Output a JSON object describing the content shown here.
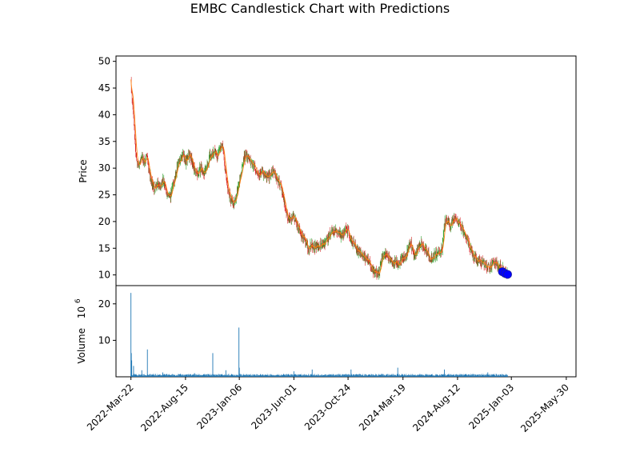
{
  "chart_data": {
    "type": "candlestick",
    "title": "EMBC Candlestick Chart with Predictions",
    "price_panel": {
      "ylabel": "Price",
      "ylim": [
        8,
        51
      ],
      "yticks": [
        10,
        15,
        20,
        25,
        30,
        35,
        40,
        45,
        50
      ],
      "close_series": [
        [
          "2022-03-22",
          46.0
        ],
        [
          "2022-03-29",
          39.5
        ],
        [
          "2022-04-05",
          31.5
        ],
        [
          "2022-04-12",
          30.5
        ],
        [
          "2022-04-19",
          32.0
        ],
        [
          "2022-04-26",
          31.0
        ],
        [
          "2022-05-03",
          32.0
        ],
        [
          "2022-05-10",
          29.0
        ],
        [
          "2022-05-17",
          27.5
        ],
        [
          "2022-05-24",
          26.0
        ],
        [
          "2022-05-31",
          27.0
        ],
        [
          "2022-06-07",
          26.5
        ],
        [
          "2022-06-14",
          27.5
        ],
        [
          "2022-06-21",
          27.0
        ],
        [
          "2022-06-28",
          24.5
        ],
        [
          "2022-07-05",
          24.5
        ],
        [
          "2022-07-12",
          26.5
        ],
        [
          "2022-07-19",
          28.5
        ],
        [
          "2022-07-26",
          31.0
        ],
        [
          "2022-08-02",
          31.5
        ],
        [
          "2022-08-09",
          32.5
        ],
        [
          "2022-08-16",
          31.0
        ],
        [
          "2022-08-23",
          32.5
        ],
        [
          "2022-08-30",
          32.0
        ],
        [
          "2022-09-06",
          30.0
        ],
        [
          "2022-09-13",
          29.0
        ],
        [
          "2022-09-20",
          29.5
        ],
        [
          "2022-09-27",
          30.0
        ],
        [
          "2022-10-04",
          29.0
        ],
        [
          "2022-10-11",
          30.0
        ],
        [
          "2022-10-18",
          32.0
        ],
        [
          "2022-10-25",
          32.5
        ],
        [
          "2022-11-01",
          33.0
        ],
        [
          "2022-11-08",
          32.0
        ],
        [
          "2022-11-15",
          33.5
        ],
        [
          "2022-11-22",
          34.0
        ],
        [
          "2022-11-29",
          30.0
        ],
        [
          "2022-12-06",
          26.0
        ],
        [
          "2022-12-13",
          24.5
        ],
        [
          "2022-12-20",
          23.5
        ],
        [
          "2022-12-27",
          24.0
        ],
        [
          "2023-01-03",
          27.0
        ],
        [
          "2023-01-10",
          29.0
        ],
        [
          "2023-01-17",
          31.5
        ],
        [
          "2023-01-24",
          32.5
        ],
        [
          "2023-01-31",
          31.5
        ],
        [
          "2023-02-07",
          31.0
        ],
        [
          "2023-02-14",
          30.5
        ],
        [
          "2023-02-21",
          29.5
        ],
        [
          "2023-02-28",
          28.5
        ],
        [
          "2023-03-07",
          29.5
        ],
        [
          "2023-03-14",
          28.5
        ],
        [
          "2023-03-21",
          28.0
        ],
        [
          "2023-03-28",
          28.5
        ],
        [
          "2023-04-04",
          29.5
        ],
        [
          "2023-04-11",
          29.0
        ],
        [
          "2023-04-18",
          27.5
        ],
        [
          "2023-04-25",
          27.0
        ],
        [
          "2023-05-02",
          25.5
        ],
        [
          "2023-05-09",
          23.0
        ],
        [
          "2023-05-16",
          20.5
        ],
        [
          "2023-05-23",
          20.5
        ],
        [
          "2023-05-30",
          21.0
        ],
        [
          "2023-06-06",
          20.5
        ],
        [
          "2023-06-13",
          19.0
        ],
        [
          "2023-06-20",
          17.5
        ],
        [
          "2023-06-27",
          17.0
        ],
        [
          "2023-07-04",
          15.5
        ],
        [
          "2023-07-11",
          15.0
        ],
        [
          "2023-07-18",
          15.5
        ],
        [
          "2023-07-25",
          15.0
        ],
        [
          "2023-08-01",
          15.5
        ],
        [
          "2023-08-08",
          15.5
        ],
        [
          "2023-08-15",
          16.0
        ],
        [
          "2023-08-22",
          16.0
        ],
        [
          "2023-08-29",
          16.5
        ],
        [
          "2023-09-05",
          17.5
        ],
        [
          "2023-09-12",
          18.0
        ],
        [
          "2023-09-19",
          18.5
        ],
        [
          "2023-09-26",
          18.0
        ],
        [
          "2023-10-03",
          17.5
        ],
        [
          "2023-10-10",
          17.5
        ],
        [
          "2023-10-17",
          18.5
        ],
        [
          "2023-10-24",
          18.0
        ],
        [
          "2023-10-31",
          16.5
        ],
        [
          "2023-11-07",
          16.0
        ],
        [
          "2023-11-14",
          15.0
        ],
        [
          "2023-11-21",
          14.5
        ],
        [
          "2023-11-28",
          14.0
        ],
        [
          "2023-12-05",
          13.5
        ],
        [
          "2023-12-12",
          13.0
        ],
        [
          "2023-12-19",
          12.5
        ],
        [
          "2023-12-26",
          11.5
        ],
        [
          "2024-01-02",
          10.5
        ],
        [
          "2024-01-09",
          10.5
        ],
        [
          "2024-01-16",
          10.5
        ],
        [
          "2024-01-23",
          13.5
        ],
        [
          "2024-01-30",
          14.0
        ],
        [
          "2024-02-06",
          13.5
        ],
        [
          "2024-02-13",
          13.0
        ],
        [
          "2024-02-20",
          12.5
        ],
        [
          "2024-02-27",
          12.5
        ],
        [
          "2024-03-05",
          12.0
        ],
        [
          "2024-03-12",
          12.5
        ],
        [
          "2024-03-19",
          13.0
        ],
        [
          "2024-03-26",
          13.5
        ],
        [
          "2024-04-02",
          15.0
        ],
        [
          "2024-04-09",
          16.0
        ],
        [
          "2024-04-16",
          14.0
        ],
        [
          "2024-04-23",
          14.0
        ],
        [
          "2024-04-30",
          15.5
        ],
        [
          "2024-05-07",
          16.0
        ],
        [
          "2024-05-14",
          15.0
        ],
        [
          "2024-05-21",
          14.5
        ],
        [
          "2024-05-28",
          13.5
        ],
        [
          "2024-06-04",
          13.0
        ],
        [
          "2024-06-11",
          13.5
        ],
        [
          "2024-06-18",
          14.0
        ],
        [
          "2024-06-25",
          14.5
        ],
        [
          "2024-07-02",
          15.0
        ],
        [
          "2024-07-09",
          20.0
        ],
        [
          "2024-07-16",
          20.0
        ],
        [
          "2024-07-23",
          19.5
        ],
        [
          "2024-07-30",
          20.0
        ],
        [
          "2024-08-06",
          20.5
        ],
        [
          "2024-08-13",
          20.0
        ],
        [
          "2024-08-20",
          19.0
        ],
        [
          "2024-08-27",
          18.5
        ],
        [
          "2024-09-03",
          17.5
        ],
        [
          "2024-09-10",
          16.0
        ],
        [
          "2024-09-17",
          14.5
        ],
        [
          "2024-09-24",
          13.5
        ],
        [
          "2024-10-01",
          13.0
        ],
        [
          "2024-10-08",
          12.5
        ],
        [
          "2024-10-15",
          12.5
        ],
        [
          "2024-10-22",
          12.0
        ],
        [
          "2024-10-29",
          11.5
        ],
        [
          "2024-11-05",
          11.5
        ],
        [
          "2024-11-12",
          12.0
        ],
        [
          "2024-11-19",
          12.5
        ],
        [
          "2024-11-26",
          12.0
        ],
        [
          "2024-12-03",
          11.5
        ],
        [
          "2024-12-10",
          11.0
        ],
        [
          "2024-12-17",
          10.5
        ],
        [
          "2024-12-24",
          10.0
        ]
      ],
      "predictions": [
        [
          "2024-12-10",
          10.6
        ],
        [
          "2024-12-17",
          10.3
        ],
        [
          "2024-12-24",
          10.1
        ]
      ]
    },
    "volume_panel": {
      "ylabel": "Volume",
      "unit_label": "10",
      "unit_exp": "6",
      "ylim": [
        0,
        25
      ],
      "yticks": [
        10,
        20
      ],
      "spikes": [
        [
          "2022-03-22",
          23.0
        ],
        [
          "2022-03-23",
          6.5
        ],
        [
          "2022-03-24",
          4.5
        ],
        [
          "2022-03-29",
          3.0
        ],
        [
          "2022-04-20",
          1.8
        ],
        [
          "2022-05-05",
          7.5
        ],
        [
          "2022-06-15",
          1.2
        ],
        [
          "2022-09-08",
          1.0
        ],
        [
          "2022-10-27",
          6.5
        ],
        [
          "2022-12-01",
          1.8
        ],
        [
          "2023-01-05",
          13.5
        ],
        [
          "2023-01-06",
          2.5
        ],
        [
          "2023-06-01",
          1.5
        ],
        [
          "2023-07-20",
          2.0
        ],
        [
          "2023-11-01",
          2.0
        ],
        [
          "2024-03-05",
          2.5
        ],
        [
          "2024-07-08",
          2.0
        ],
        [
          "2024-11-01",
          1.2
        ]
      ]
    },
    "xlim": [
      "2022-02-10",
      "2025-06-25"
    ],
    "x_tick_labels": [
      [
        "2022-03-22",
        "2022-Mar-22"
      ],
      [
        "2022-08-15",
        "2022-Aug-15"
      ],
      [
        "2023-01-06",
        "2023-Jan-06"
      ],
      [
        "2023-06-01",
        "2023-Jun-01"
      ],
      [
        "2023-10-24",
        "2023-Oct-24"
      ],
      [
        "2024-03-19",
        "2024-Mar-19"
      ],
      [
        "2024-08-12",
        "2024-Aug-12"
      ],
      [
        "2025-01-03",
        "2025-Jan-03"
      ],
      [
        "2025-05-30",
        "2025-May-30"
      ]
    ],
    "colors": {
      "up": "#2ca02c",
      "down": "#d62728",
      "close_line": "#ff7f0e",
      "volume": "#1f77b4",
      "prediction": "#0000ff"
    }
  }
}
